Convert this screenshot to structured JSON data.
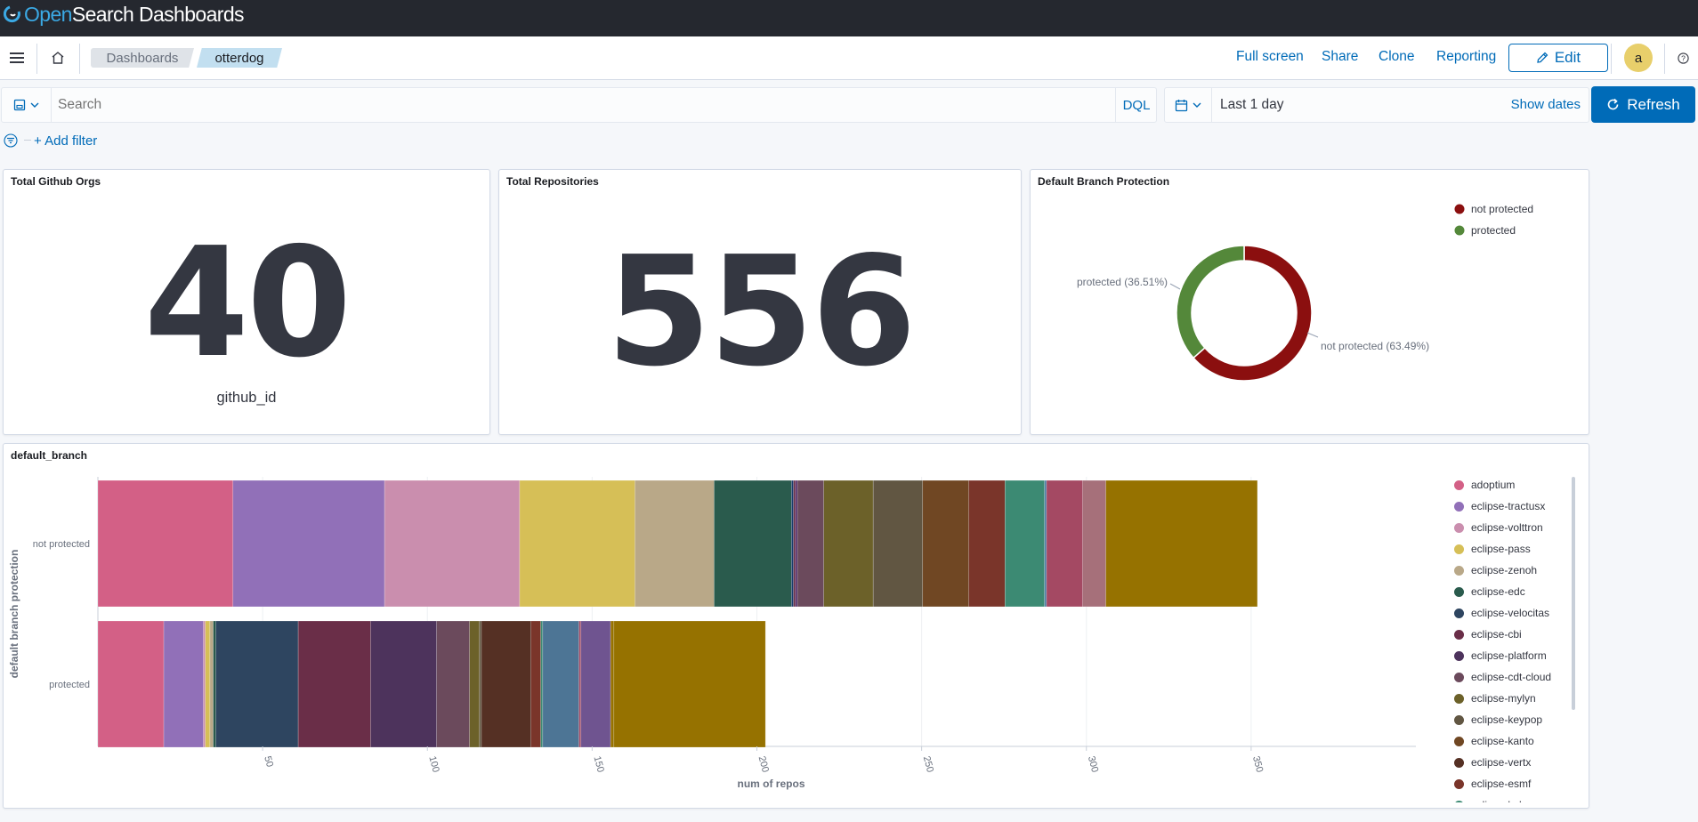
{
  "header": {
    "logo": {
      "part1": "Open",
      "part2": "Search Dashboards"
    }
  },
  "nav": {
    "breadcrumbs": [
      "Dashboards",
      "otterdog"
    ],
    "links": {
      "fullscreen": "Full screen",
      "share": "Share",
      "clone": "Clone",
      "reporting": "Reporting"
    },
    "edit": "Edit",
    "avatar": "a"
  },
  "query": {
    "placeholder": "Search",
    "language": "DQL",
    "time": "Last 1 day",
    "show_dates": "Show dates",
    "refresh": "Refresh",
    "add_filter": "+ Add filter"
  },
  "panels": {
    "orgs": {
      "title": "Total Github Orgs",
      "value": "40",
      "label": "github_id"
    },
    "repos": {
      "title": "Total Repositories",
      "value": "556"
    },
    "protection": {
      "title": "Default Branch Protection"
    },
    "branch": {
      "title": "default_branch"
    }
  },
  "chart_data": [
    {
      "type": "pie",
      "donut": true,
      "title": "Default Branch Protection",
      "slices": [
        {
          "label": "not protected",
          "percent": 63.49,
          "color": "#8b0f0f"
        },
        {
          "label": "protected",
          "percent": 36.51,
          "color": "#54883a"
        }
      ],
      "labels": [
        "not protected (63.49%)",
        "protected (36.51%)"
      ],
      "legend": [
        "not protected",
        "protected"
      ],
      "legend_position": "top-right"
    },
    {
      "type": "bar",
      "orientation": "horizontal",
      "stacked": true,
      "title": "default_branch",
      "xlabel": "num of repos",
      "ylabel": "default branch protection",
      "xlim": [
        0,
        400
      ],
      "xticks": [
        50,
        100,
        150,
        200,
        250,
        300,
        350
      ],
      "grid": true,
      "categories": [
        "not protected",
        "protected"
      ],
      "segments": [
        [
          {
            "color": "#d36086",
            "value": 41
          },
          {
            "color": "#9170b8",
            "value": 46
          },
          {
            "color": "#ca8eae",
            "value": 41
          },
          {
            "color": "#d6bf57",
            "value": 35
          },
          {
            "color": "#b9a888",
            "value": 24
          },
          {
            "color": "#2a5b4d",
            "value": 23.5
          },
          {
            "color": "#1a3d6e",
            "value": 0.6
          },
          {
            "color": "#6a2e48",
            "value": 0.6
          },
          {
            "color": "#532f6b",
            "value": 0.6
          },
          {
            "color": "#6b4a5c",
            "value": 8
          },
          {
            "color": "#6c6129",
            "value": 15
          },
          {
            "color": "#615642",
            "value": 15
          },
          {
            "color": "#704723",
            "value": 14
          },
          {
            "color": "#7a352a",
            "value": 11
          },
          {
            "color": "#3c8a73",
            "value": 12
          },
          {
            "color": "#4d7fa6",
            "value": 0.6
          },
          {
            "color": "#a44963",
            "value": 11
          },
          {
            "color": "#a6707a",
            "value": 7
          },
          {
            "color": "#967200",
            "value": 46
          }
        ],
        [
          {
            "color": "#d36086",
            "value": 20
          },
          {
            "color": "#9170b8",
            "value": 12
          },
          {
            "color": "#ca8eae",
            "value": 0.6
          },
          {
            "color": "#d6bf57",
            "value": 1.4
          },
          {
            "color": "#b9a888",
            "value": 1
          },
          {
            "color": "#2a5b4d",
            "value": 0.8
          },
          {
            "color": "#2e4560",
            "value": 25
          },
          {
            "color": "#6a2e48",
            "value": 22
          },
          {
            "color": "#4d335c",
            "value": 20
          },
          {
            "color": "#6b4a5c",
            "value": 10
          },
          {
            "color": "#6c6129",
            "value": 3
          },
          {
            "color": "#615642",
            "value": 0.6
          },
          {
            "color": "#553024",
            "value": 15
          },
          {
            "color": "#7a352a",
            "value": 3
          },
          {
            "color": "#3c8a73",
            "value": 0.6
          },
          {
            "color": "#4d7595",
            "value": 11
          },
          {
            "color": "#a44963",
            "value": 0.6
          },
          {
            "color": "#6f5490",
            "value": 9
          },
          {
            "color": "#967200",
            "value": 1
          },
          {
            "color": "#967200",
            "value": 46
          }
        ]
      ],
      "legend": [
        {
          "label": "adoptium",
          "color": "#d36086"
        },
        {
          "label": "eclipse-tractusx",
          "color": "#9170b8"
        },
        {
          "label": "eclipse-volttron",
          "color": "#ca8eae"
        },
        {
          "label": "eclipse-pass",
          "color": "#d6bf57"
        },
        {
          "label": "eclipse-zenoh",
          "color": "#b9a888"
        },
        {
          "label": "eclipse-edc",
          "color": "#2a5b4d"
        },
        {
          "label": "eclipse-velocitas",
          "color": "#2e4560"
        },
        {
          "label": "eclipse-cbi",
          "color": "#6a2e48"
        },
        {
          "label": "eclipse-platform",
          "color": "#4d335c"
        },
        {
          "label": "eclipse-cdt-cloud",
          "color": "#6b4a5c"
        },
        {
          "label": "eclipse-mylyn",
          "color": "#6c6129"
        },
        {
          "label": "eclipse-keypop",
          "color": "#615642"
        },
        {
          "label": "eclipse-kanto",
          "color": "#704723"
        },
        {
          "label": "eclipse-vertx",
          "color": "#553024"
        },
        {
          "label": "eclipse-esmf",
          "color": "#7a352a"
        },
        {
          "label": "eclipse-lsds",
          "color": "#3c8a73"
        }
      ],
      "legend_position": "right"
    }
  ]
}
